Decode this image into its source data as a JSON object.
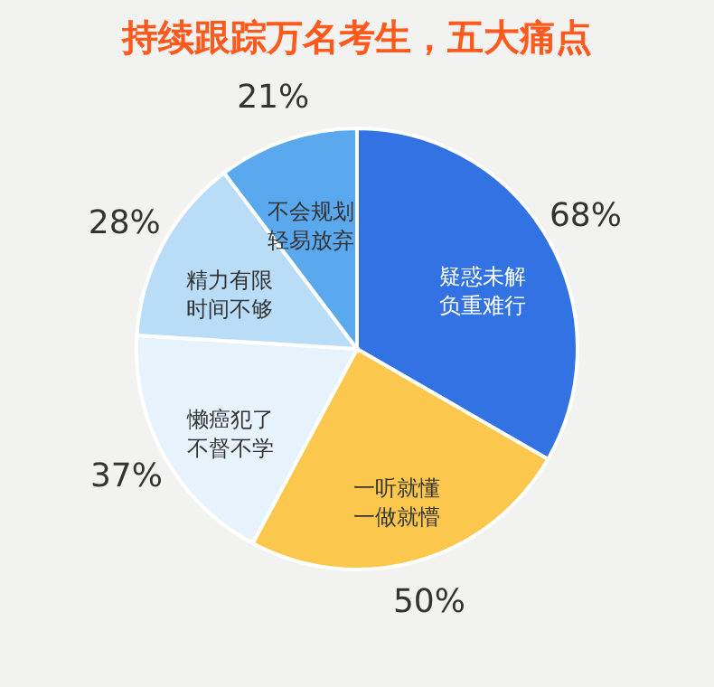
{
  "chart_data": {
    "type": "pie",
    "title": "持续跟踪万名考生，五大痛点",
    "categories": [
      "疑惑未解负重难行",
      "一听就懂一做就懵",
      "懒癌犯了不督不学",
      "精力有限时间不够",
      "不会规划轻易放弃"
    ],
    "values": [
      68,
      50,
      37,
      28,
      21
    ],
    "value_labels": [
      "68%",
      "50%",
      "37%",
      "28%",
      "21%"
    ],
    "colors": [
      "#3372e2",
      "#fcc74d",
      "#e6f3fc",
      "#b9dcf7",
      "#5aa9ee"
    ]
  }
}
